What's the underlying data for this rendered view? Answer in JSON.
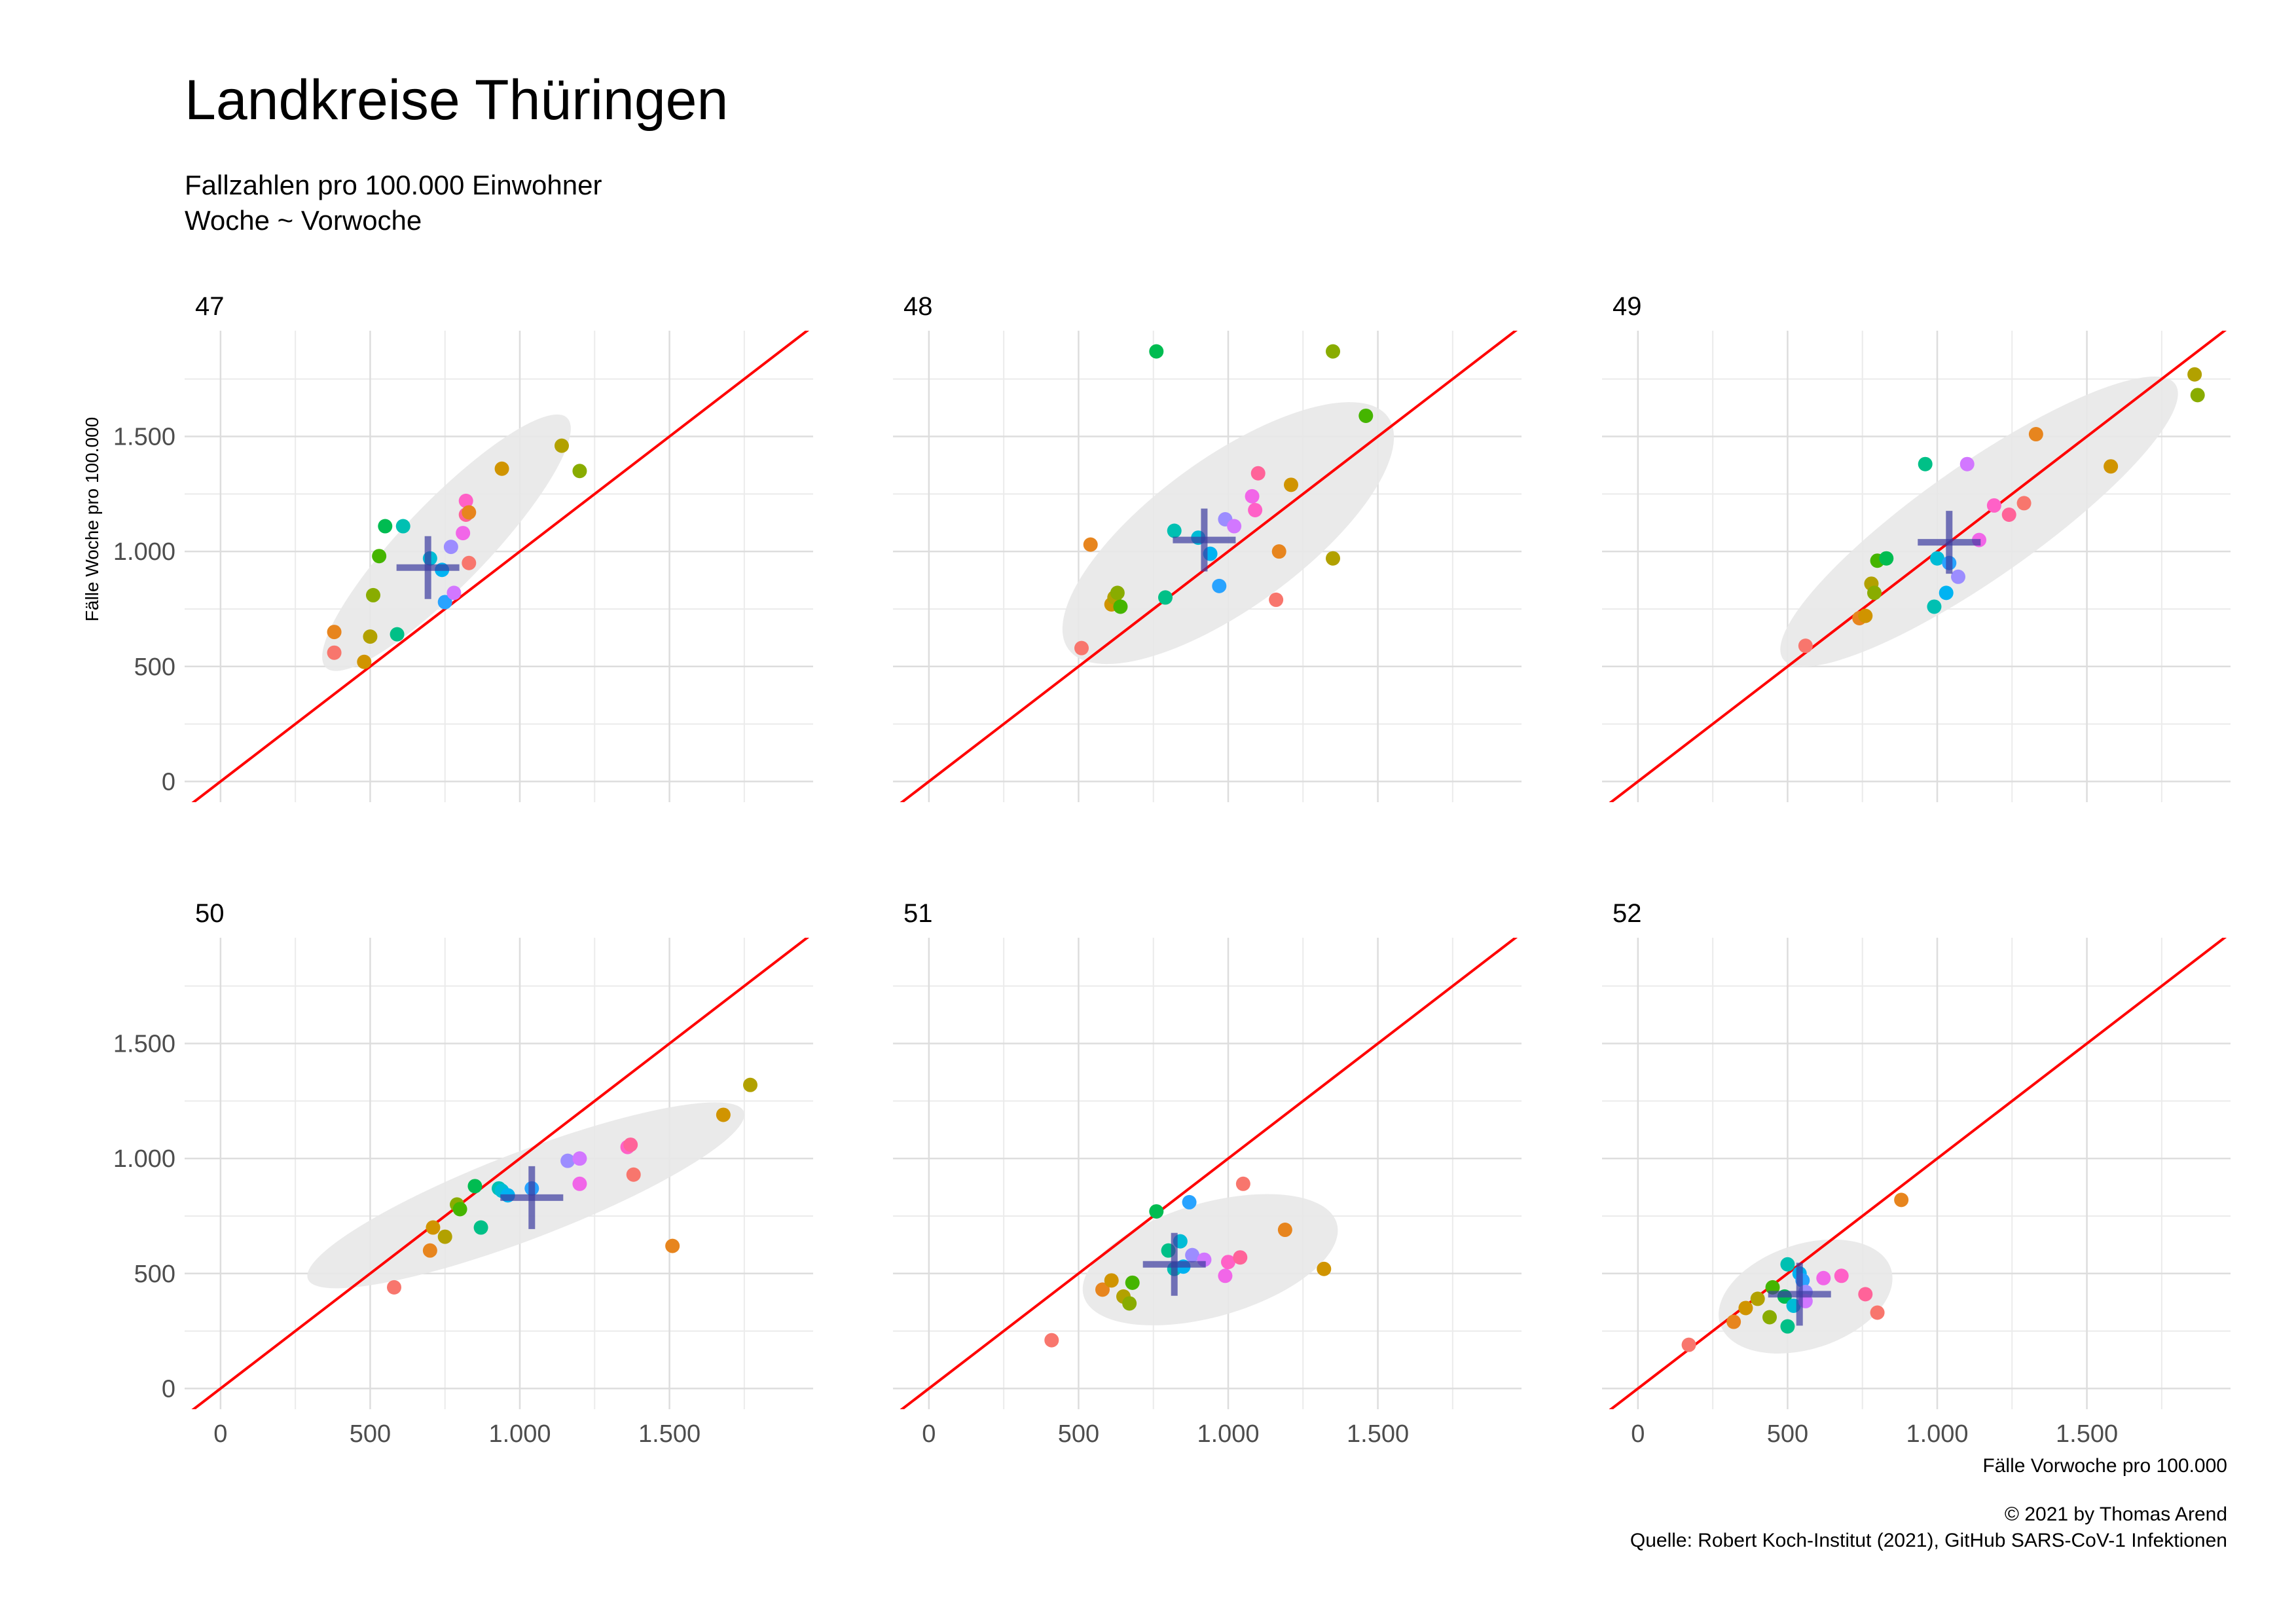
{
  "header": {
    "title": "Landkreise Thüringen",
    "subtitle_line1": "Fallzahlen pro 100.000 Einwohner",
    "subtitle_line2": "Woche ~ Vorwoche"
  },
  "caption": {
    "line1": "© 2021 by Thomas Arend",
    "line2": "Quelle: Robert Koch-Institut (2021), GitHub SARS-CoV-1 Infektionen"
  },
  "colors": {
    "reference_line": "#ff0000",
    "ellipse_fill": "#e8e8e8",
    "mean_cross": "#3c3ca0",
    "grid": "#dddddd",
    "panel_bg": "#ffffff"
  },
  "chart_data": {
    "type": "scatter",
    "facet_layout": "3x2",
    "xlabel": "Fälle Vorwoche pro 100.000",
    "ylabel": "Fälle Woche pro 100.000",
    "xlim": [
      -120,
      1980
    ],
    "ylim": [
      -90,
      1960
    ],
    "x_ticks": [
      0,
      500,
      1000,
      1500
    ],
    "x_tick_labels": [
      "0",
      "500",
      "1.000",
      "1.500"
    ],
    "y_ticks": [
      0,
      500,
      1000,
      1500
    ],
    "y_tick_labels": [
      "0",
      "500",
      "1.000",
      "1.500"
    ],
    "grid": true,
    "reference_line": "y = x",
    "point_colors": [
      "#F8766D",
      "#E7851E",
      "#D09400",
      "#B2A100",
      "#89AC00",
      "#45B500",
      "#00BC51",
      "#00C087",
      "#00C0B2",
      "#00BCD6",
      "#00B3F2",
      "#29A3FF",
      "#9C8DFF",
      "#D277FF",
      "#F166E8",
      "#FF61C7",
      "#FF6399"
    ],
    "panels": [
      {
        "label": "47",
        "mean": [
          693,
          930
        ],
        "ellipse": {
          "center": [
            755,
            1038
          ],
          "rx": 580,
          "ry": 140,
          "angle_deg": 46
        },
        "points": [
          [
            380,
            560
          ],
          [
            380,
            650
          ],
          [
            480,
            520
          ],
          [
            500,
            630
          ],
          [
            510,
            810
          ],
          [
            530,
            980
          ],
          [
            550,
            1110
          ],
          [
            590,
            640
          ],
          [
            610,
            1110
          ],
          [
            700,
            970
          ],
          [
            740,
            920
          ],
          [
            750,
            780
          ],
          [
            770,
            1020
          ],
          [
            780,
            820
          ],
          [
            810,
            1080
          ],
          [
            820,
            1220
          ],
          [
            820,
            1160
          ],
          [
            830,
            950
          ],
          [
            830,
            1170
          ],
          [
            940,
            1360
          ],
          [
            1140,
            1460
          ],
          [
            1200,
            1350
          ]
        ]
      },
      {
        "label": "48",
        "mean": [
          920,
          1050
        ],
        "ellipse": {
          "center": [
            1000,
            1080
          ],
          "rx": 660,
          "ry": 250,
          "angle_deg": 36
        },
        "points": [
          [
            510,
            580
          ],
          [
            540,
            1030
          ],
          [
            610,
            770
          ],
          [
            620,
            800
          ],
          [
            630,
            820
          ],
          [
            640,
            760
          ],
          [
            760,
            1870
          ],
          [
            790,
            800
          ],
          [
            820,
            1090
          ],
          [
            900,
            1060
          ],
          [
            940,
            990
          ],
          [
            970,
            850
          ],
          [
            990,
            1140
          ],
          [
            1020,
            1110
          ],
          [
            1080,
            1240
          ],
          [
            1090,
            1180
          ],
          [
            1100,
            1340
          ],
          [
            1160,
            790
          ],
          [
            1170,
            1000
          ],
          [
            1210,
            1290
          ],
          [
            1350,
            970
          ],
          [
            1350,
            1870
          ],
          [
            1460,
            1590
          ]
        ]
      },
      {
        "label": "49",
        "mean": [
          1040,
          1040
        ],
        "ellipse": {
          "center": [
            1140,
            1130
          ],
          "rx": 800,
          "ry": 190,
          "angle_deg": 35
        },
        "points": [
          [
            560,
            590
          ],
          [
            740,
            710
          ],
          [
            760,
            720
          ],
          [
            780,
            860
          ],
          [
            790,
            820
          ],
          [
            800,
            960
          ],
          [
            830,
            970
          ],
          [
            960,
            1380
          ],
          [
            990,
            760
          ],
          [
            1000,
            970
          ],
          [
            1030,
            820
          ],
          [
            1040,
            950
          ],
          [
            1070,
            890
          ],
          [
            1100,
            1380
          ],
          [
            1140,
            1050
          ],
          [
            1190,
            1200
          ],
          [
            1240,
            1160
          ],
          [
            1290,
            1210
          ],
          [
            1330,
            1510
          ],
          [
            1580,
            1370
          ],
          [
            1860,
            1770
          ],
          [
            1870,
            1680
          ]
        ]
      },
      {
        "label": "50",
        "mean": [
          1040,
          830
        ],
        "ellipse": {
          "center": [
            1020,
            840
          ],
          "rx": 780,
          "ry": 145,
          "angle_deg": 21
        },
        "points": [
          [
            580,
            440
          ],
          [
            700,
            600
          ],
          [
            710,
            700
          ],
          [
            750,
            660
          ],
          [
            790,
            800
          ],
          [
            800,
            780
          ],
          [
            850,
            880
          ],
          [
            870,
            700
          ],
          [
            930,
            870
          ],
          [
            940,
            860
          ],
          [
            960,
            840
          ],
          [
            1040,
            870
          ],
          [
            1160,
            990
          ],
          [
            1200,
            1000
          ],
          [
            1200,
            890
          ],
          [
            1360,
            1050
          ],
          [
            1370,
            1060
          ],
          [
            1380,
            930
          ],
          [
            1510,
            620
          ],
          [
            1680,
            1190
          ],
          [
            1770,
            1320
          ]
        ]
      },
      {
        "label": "51",
        "mean": [
          820,
          540
        ],
        "ellipse": {
          "center": [
            940,
            560
          ],
          "rx": 440,
          "ry": 190,
          "angle_deg": 16
        },
        "points": [
          [
            410,
            210
          ],
          [
            580,
            430
          ],
          [
            610,
            470
          ],
          [
            650,
            400
          ],
          [
            670,
            370
          ],
          [
            680,
            460
          ],
          [
            760,
            770
          ],
          [
            800,
            600
          ],
          [
            820,
            520
          ],
          [
            840,
            640
          ],
          [
            850,
            530
          ],
          [
            870,
            810
          ],
          [
            880,
            580
          ],
          [
            920,
            560
          ],
          [
            990,
            490
          ],
          [
            1000,
            550
          ],
          [
            1040,
            570
          ],
          [
            1050,
            890
          ],
          [
            1190,
            690
          ],
          [
            1320,
            520
          ]
        ]
      },
      {
        "label": "52",
        "mean": [
          540,
          410
        ],
        "ellipse": {
          "center": [
            560,
            400
          ],
          "rx": 300,
          "ry": 175,
          "angle_deg": 18
        },
        "points": [
          [
            170,
            190
          ],
          [
            320,
            290
          ],
          [
            360,
            350
          ],
          [
            400,
            390
          ],
          [
            440,
            310
          ],
          [
            450,
            440
          ],
          [
            490,
            400
          ],
          [
            500,
            270
          ],
          [
            500,
            540
          ],
          [
            520,
            360
          ],
          [
            540,
            500
          ],
          [
            550,
            470
          ],
          [
            560,
            420
          ],
          [
            560,
            380
          ],
          [
            620,
            480
          ],
          [
            680,
            490
          ],
          [
            760,
            410
          ],
          [
            800,
            330
          ],
          [
            880,
            820
          ]
        ]
      }
    ]
  }
}
